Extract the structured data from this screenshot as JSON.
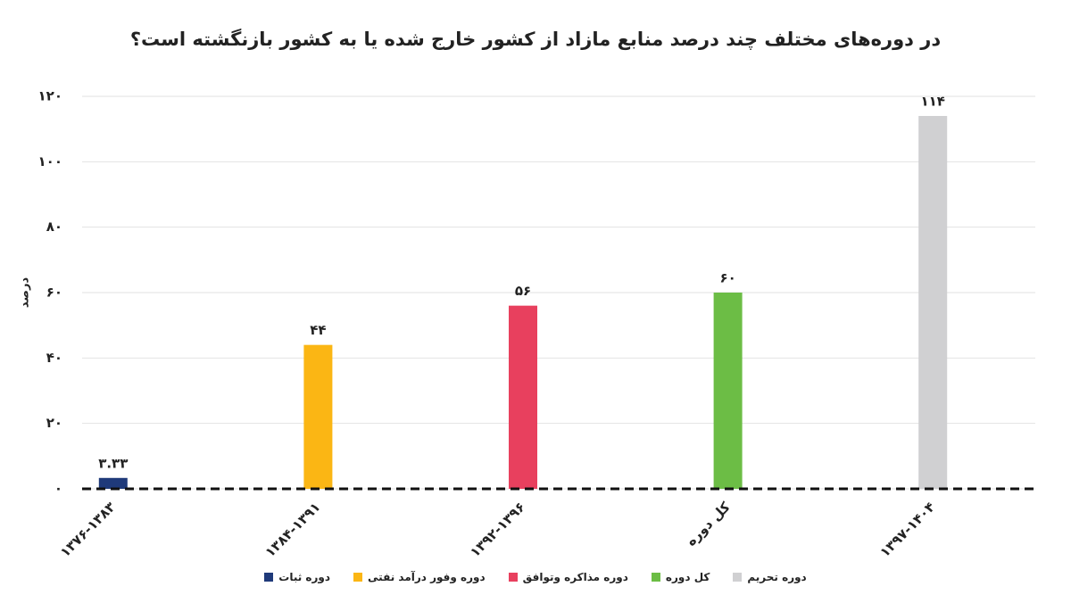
{
  "chart_data": {
    "type": "bar",
    "title": "در دوره‌های مختلف چند درصد منابع مازاد از کشور خارج شده یا به کشور بازنگشته است؟",
    "y_label": "درصد",
    "categories": [
      "۱۳۷۶-۱۳۸۳",
      "۱۳۸۴-۱۳۹۱",
      "۱۳۹۲-۱۳۹۶",
      "کل دوره",
      "۱۳۹۷-۱۴۰۴"
    ],
    "values": [
      3.33,
      44,
      56,
      60,
      114
    ],
    "value_labels": [
      "۳.۳۳",
      "۴۴",
      "۵۶",
      "۶۰",
      "۱۱۴"
    ],
    "colors": [
      "#1f3a7a",
      "#fbb614",
      "#e8405e",
      "#6cbd45",
      "#d0d0d2"
    ],
    "legend": [
      "دوره ثبات",
      "دوره وفور درآمد نفتی",
      "دوره مذاکره وتوافق",
      "کل دوره",
      "دوره تحریم"
    ],
    "ylim": [
      0,
      120
    ],
    "yticks": [
      {
        "value": 0,
        "label": "۰"
      },
      {
        "value": 20,
        "label": "۲۰"
      },
      {
        "value": 40,
        "label": "۴۰"
      },
      {
        "value": 60,
        "label": "۶۰"
      },
      {
        "value": 80,
        "label": "۸۰"
      },
      {
        "value": 100,
        "label": "۱۰۰"
      },
      {
        "value": 120,
        "label": "۱۲۰"
      }
    ],
    "grid": true
  }
}
